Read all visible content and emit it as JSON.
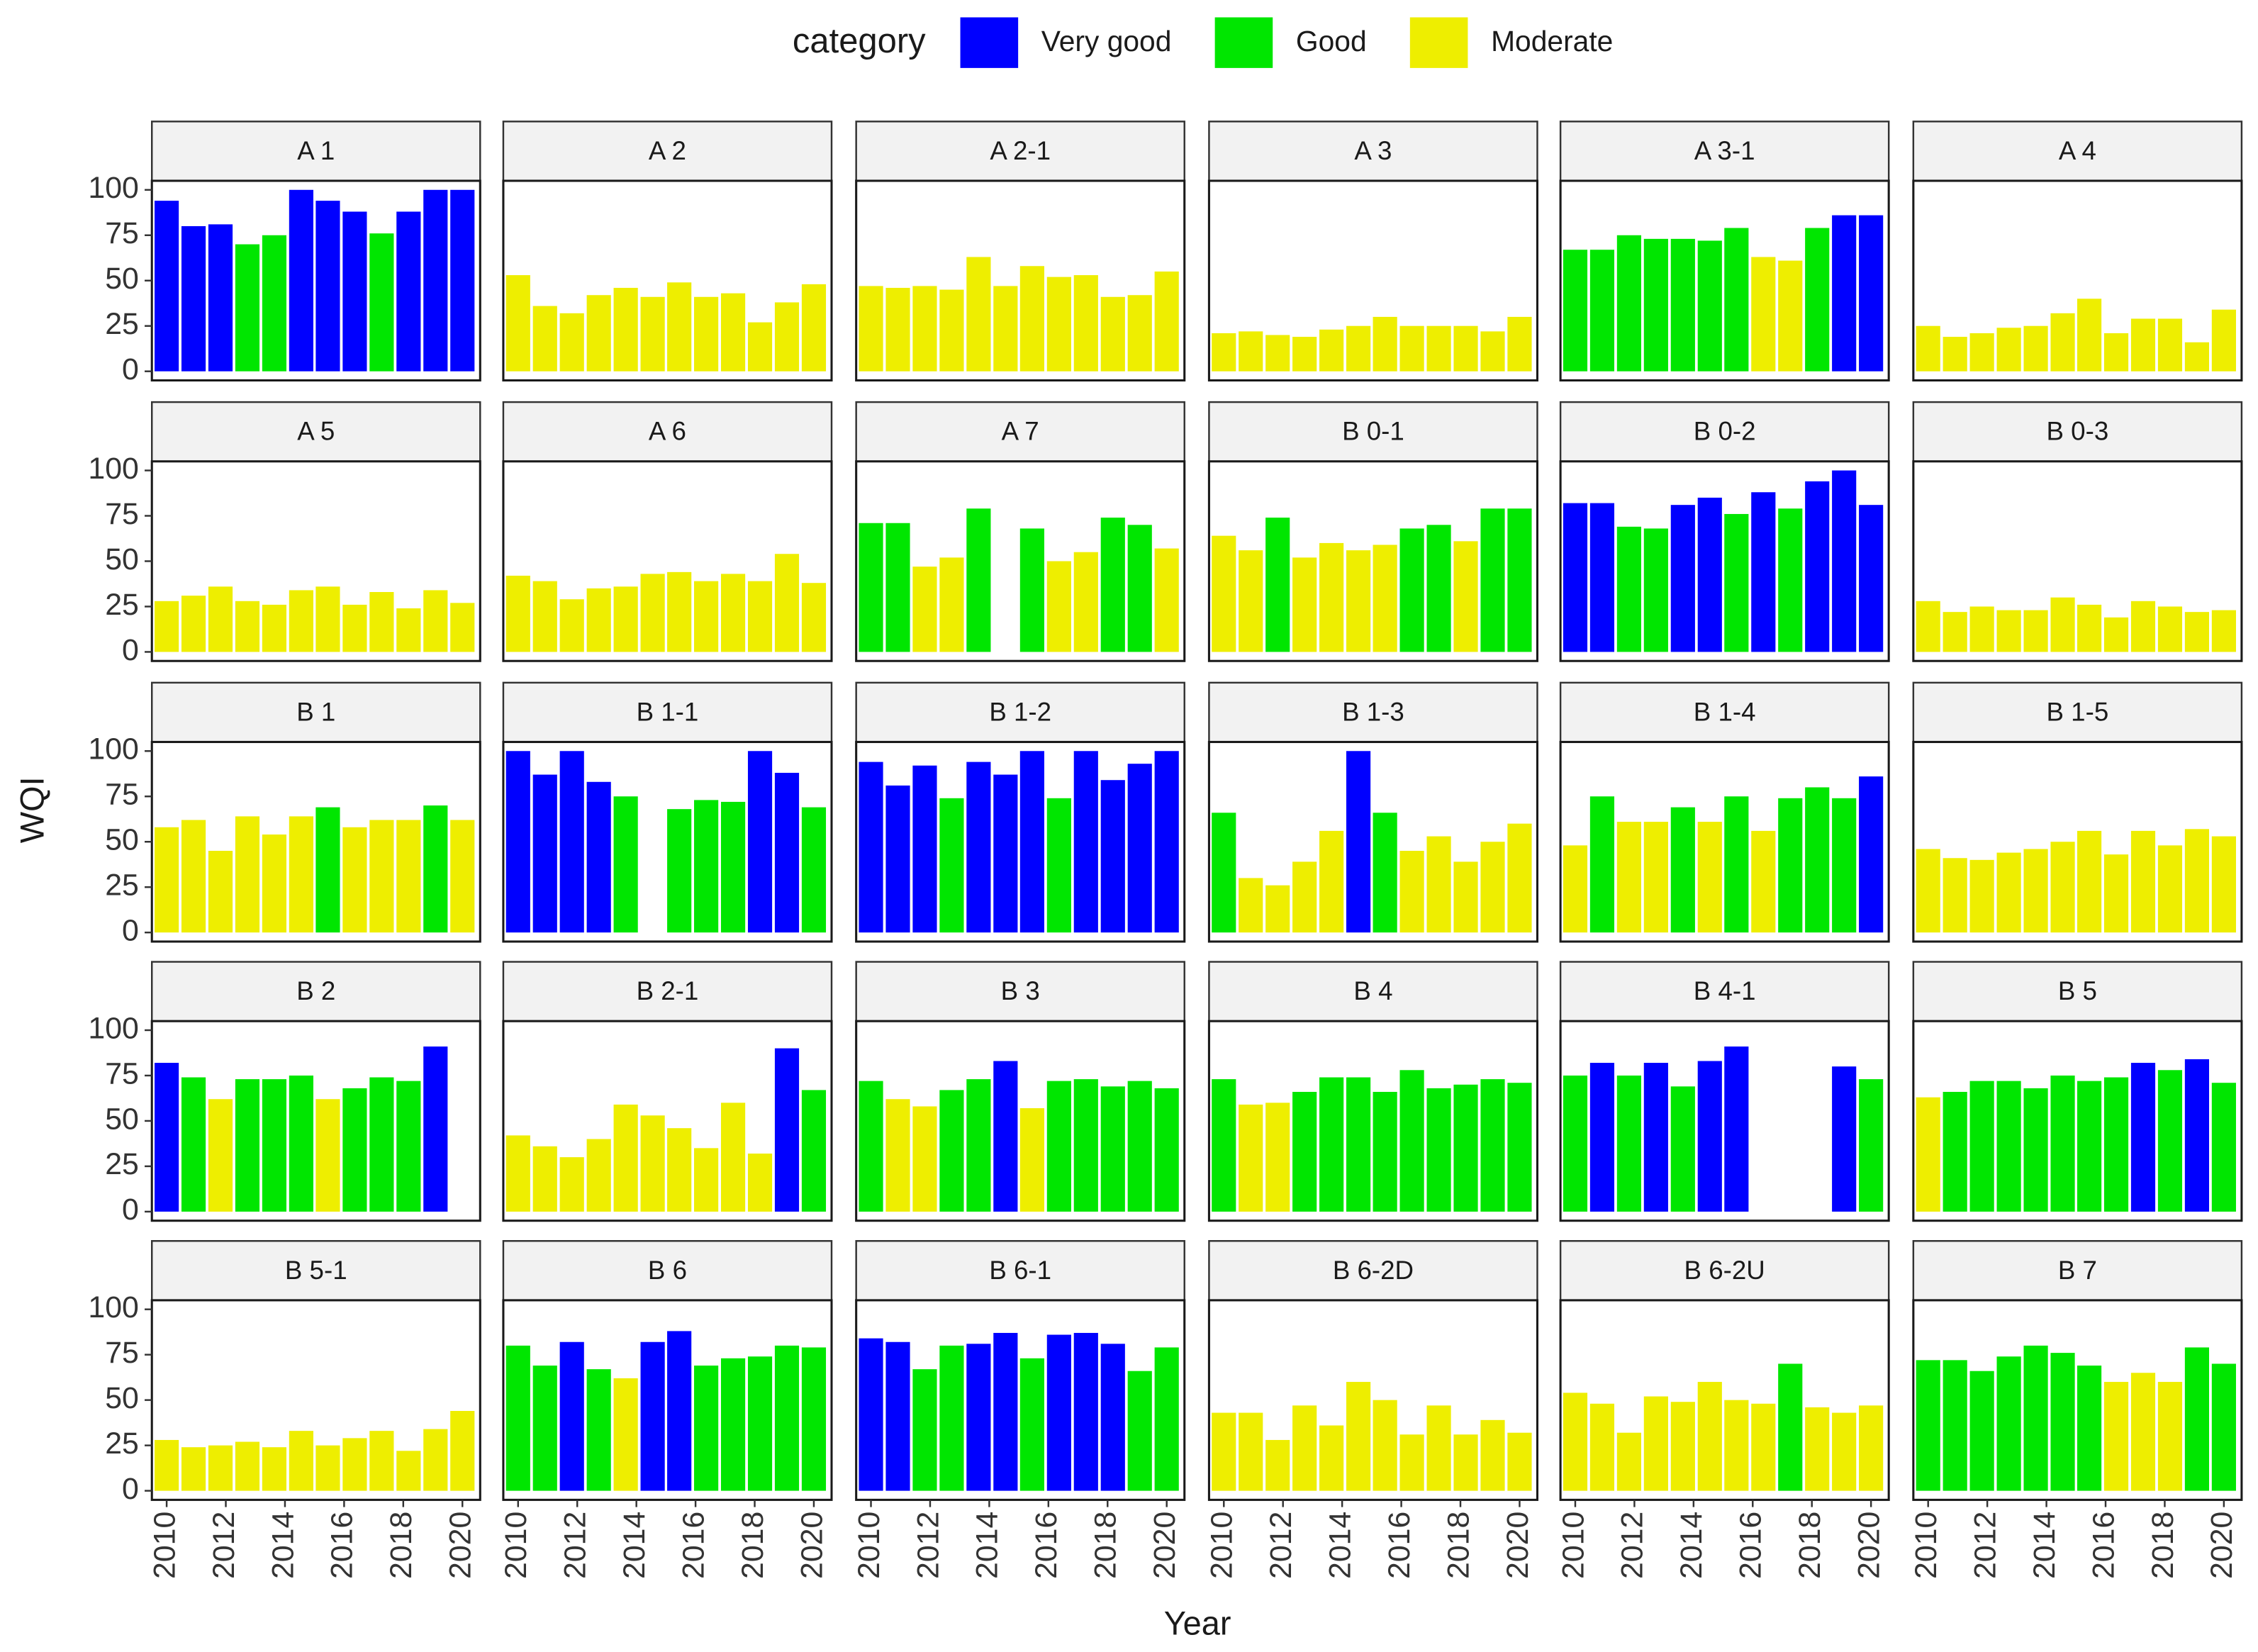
{
  "chart_data": {
    "type": "bar",
    "legend_title": "category",
    "xlabel": "Year",
    "ylabel": "WQI",
    "grid": false,
    "legend": "top",
    "series": [
      {
        "name": "Very good",
        "color": "#0000ff"
      },
      {
        "name": "Good",
        "color": "#00e600"
      },
      {
        "name": "Moderate",
        "color": "#eeee00"
      }
    ],
    "x": [
      2010,
      2010.91,
      2011.82,
      2012.73,
      2013.64,
      2014.55,
      2015.45,
      2016.36,
      2017.27,
      2018.18,
      2019.09,
      2020
    ],
    "xlim": [
      2009.5,
      2020.6
    ],
    "xticks": [
      2010,
      2012,
      2014,
      2016,
      2018,
      2020
    ],
    "ylim": [
      -5,
      105
    ],
    "yticks": [
      0,
      25,
      50,
      75,
      100
    ],
    "panels": [
      {
        "title": "A 1",
        "values": [
          94,
          80,
          81,
          70,
          75,
          100,
          94,
          88,
          76,
          88,
          100,
          100
        ],
        "category": [
          "Very good",
          "Very good",
          "Very good",
          "Good",
          "Good",
          "Very good",
          "Very good",
          "Very good",
          "Good",
          "Very good",
          "Very good",
          "Very good"
        ]
      },
      {
        "title": "A 2",
        "values": [
          53,
          36,
          32,
          42,
          46,
          41,
          49,
          41,
          43,
          27,
          38,
          48
        ],
        "category": [
          "Moderate",
          "Moderate",
          "Moderate",
          "Moderate",
          "Moderate",
          "Moderate",
          "Moderate",
          "Moderate",
          "Moderate",
          "Moderate",
          "Moderate",
          "Moderate"
        ]
      },
      {
        "title": "A 2-1",
        "values": [
          47,
          46,
          47,
          45,
          63,
          47,
          58,
          52,
          53,
          41,
          42,
          55
        ],
        "category": [
          "Moderate",
          "Moderate",
          "Moderate",
          "Moderate",
          "Moderate",
          "Moderate",
          "Moderate",
          "Moderate",
          "Moderate",
          "Moderate",
          "Moderate",
          "Moderate"
        ]
      },
      {
        "title": "A 3",
        "values": [
          21,
          22,
          20,
          19,
          23,
          25,
          30,
          25,
          25,
          25,
          22,
          30
        ],
        "category": [
          "Moderate",
          "Moderate",
          "Moderate",
          "Moderate",
          "Moderate",
          "Moderate",
          "Moderate",
          "Moderate",
          "Moderate",
          "Moderate",
          "Moderate",
          "Moderate"
        ]
      },
      {
        "title": "A 3-1",
        "values": [
          67,
          67,
          75,
          73,
          73,
          72,
          79,
          63,
          61,
          79,
          86,
          86
        ],
        "category": [
          "Good",
          "Good",
          "Good",
          "Good",
          "Good",
          "Good",
          "Good",
          "Moderate",
          "Moderate",
          "Good",
          "Very good",
          "Very good"
        ]
      },
      {
        "title": "A 4",
        "values": [
          25,
          19,
          21,
          24,
          25,
          32,
          40,
          21,
          29,
          29,
          16,
          34
        ],
        "category": [
          "Moderate",
          "Moderate",
          "Moderate",
          "Moderate",
          "Moderate",
          "Moderate",
          "Moderate",
          "Moderate",
          "Moderate",
          "Moderate",
          "Moderate",
          "Moderate"
        ]
      },
      {
        "title": "A 5",
        "values": [
          28,
          31,
          36,
          28,
          26,
          34,
          36,
          26,
          33,
          24,
          34,
          27
        ],
        "category": [
          "Moderate",
          "Moderate",
          "Moderate",
          "Moderate",
          "Moderate",
          "Moderate",
          "Moderate",
          "Moderate",
          "Moderate",
          "Moderate",
          "Moderate",
          "Moderate"
        ]
      },
      {
        "title": "A 6",
        "values": [
          42,
          39,
          29,
          35,
          36,
          43,
          44,
          39,
          43,
          39,
          54,
          38
        ],
        "category": [
          "Moderate",
          "Moderate",
          "Moderate",
          "Moderate",
          "Moderate",
          "Moderate",
          "Moderate",
          "Moderate",
          "Moderate",
          "Moderate",
          "Moderate",
          "Moderate"
        ]
      },
      {
        "title": "A 7",
        "values": [
          71,
          71,
          47,
          52,
          79,
          null,
          68,
          50,
          55,
          74,
          70,
          57
        ],
        "category": [
          "Good",
          "Good",
          "Moderate",
          "Moderate",
          "Good",
          null,
          "Good",
          "Moderate",
          "Moderate",
          "Good",
          "Good",
          "Moderate"
        ]
      },
      {
        "title": "B 0-1",
        "values": [
          64,
          56,
          74,
          52,
          60,
          56,
          59,
          68,
          70,
          61,
          79,
          79
        ],
        "category": [
          "Moderate",
          "Moderate",
          "Good",
          "Moderate",
          "Moderate",
          "Moderate",
          "Moderate",
          "Good",
          "Good",
          "Moderate",
          "Good",
          "Good"
        ]
      },
      {
        "title": "B 0-2",
        "values": [
          82,
          82,
          69,
          68,
          81,
          85,
          76,
          88,
          79,
          94,
          100,
          81
        ],
        "category": [
          "Very good",
          "Very good",
          "Good",
          "Good",
          "Very good",
          "Very good",
          "Good",
          "Very good",
          "Good",
          "Very good",
          "Very good",
          "Very good"
        ]
      },
      {
        "title": "B 0-3",
        "values": [
          28,
          22,
          25,
          23,
          23,
          30,
          26,
          19,
          28,
          25,
          22,
          23
        ],
        "category": [
          "Moderate",
          "Moderate",
          "Moderate",
          "Moderate",
          "Moderate",
          "Moderate",
          "Moderate",
          "Moderate",
          "Moderate",
          "Moderate",
          "Moderate",
          "Moderate"
        ]
      },
      {
        "title": "B 1",
        "values": [
          58,
          62,
          45,
          64,
          54,
          64,
          69,
          58,
          62,
          62,
          70,
          62
        ],
        "category": [
          "Moderate",
          "Moderate",
          "Moderate",
          "Moderate",
          "Moderate",
          "Moderate",
          "Good",
          "Moderate",
          "Moderate",
          "Moderate",
          "Good",
          "Moderate"
        ]
      },
      {
        "title": "B 1-1",
        "values": [
          100,
          87,
          100,
          83,
          75,
          null,
          68,
          73,
          72,
          100,
          88,
          69
        ],
        "category": [
          "Very good",
          "Very good",
          "Very good",
          "Very good",
          "Good",
          null,
          "Good",
          "Good",
          "Good",
          "Very good",
          "Very good",
          "Good"
        ]
      },
      {
        "title": "B 1-2",
        "values": [
          94,
          81,
          92,
          74,
          94,
          87,
          100,
          74,
          100,
          84,
          93,
          100
        ],
        "category": [
          "Very good",
          "Very good",
          "Very good",
          "Good",
          "Very good",
          "Very good",
          "Very good",
          "Good",
          "Very good",
          "Very good",
          "Very good",
          "Very good"
        ]
      },
      {
        "title": "B 1-3",
        "values": [
          66,
          30,
          26,
          39,
          56,
          100,
          66,
          45,
          53,
          39,
          50,
          60
        ],
        "category": [
          "Good",
          "Moderate",
          "Moderate",
          "Moderate",
          "Moderate",
          "Very good",
          "Good",
          "Moderate",
          "Moderate",
          "Moderate",
          "Moderate",
          "Moderate"
        ]
      },
      {
        "title": "B 1-4",
        "values": [
          48,
          75,
          61,
          61,
          69,
          61,
          75,
          56,
          74,
          80,
          74,
          86
        ],
        "category": [
          "Moderate",
          "Good",
          "Moderate",
          "Moderate",
          "Good",
          "Moderate",
          "Good",
          "Moderate",
          "Good",
          "Good",
          "Good",
          "Very good"
        ]
      },
      {
        "title": "B 1-5",
        "values": [
          46,
          41,
          40,
          44,
          46,
          50,
          56,
          43,
          56,
          48,
          57,
          53
        ],
        "category": [
          "Moderate",
          "Moderate",
          "Moderate",
          "Moderate",
          "Moderate",
          "Moderate",
          "Moderate",
          "Moderate",
          "Moderate",
          "Moderate",
          "Moderate",
          "Moderate"
        ]
      },
      {
        "title": "B 2",
        "values": [
          82,
          74,
          62,
          73,
          73,
          75,
          62,
          68,
          74,
          72,
          91,
          null
        ],
        "category": [
          "Very good",
          "Good",
          "Moderate",
          "Good",
          "Good",
          "Good",
          "Moderate",
          "Good",
          "Good",
          "Good",
          "Very good",
          null
        ]
      },
      {
        "title": "B 2-1",
        "values": [
          42,
          36,
          30,
          40,
          59,
          53,
          46,
          35,
          60,
          32,
          90,
          67
        ],
        "category": [
          "Moderate",
          "Moderate",
          "Moderate",
          "Moderate",
          "Moderate",
          "Moderate",
          "Moderate",
          "Moderate",
          "Moderate",
          "Moderate",
          "Very good",
          "Good"
        ]
      },
      {
        "title": "B 3",
        "values": [
          72,
          62,
          58,
          67,
          73,
          83,
          57,
          72,
          73,
          69,
          72,
          68
        ],
        "category": [
          "Good",
          "Moderate",
          "Moderate",
          "Good",
          "Good",
          "Very good",
          "Moderate",
          "Good",
          "Good",
          "Good",
          "Good",
          "Good"
        ]
      },
      {
        "title": "B 4",
        "values": [
          73,
          59,
          60,
          66,
          74,
          74,
          66,
          78,
          68,
          70,
          73,
          71
        ],
        "category": [
          "Good",
          "Moderate",
          "Moderate",
          "Good",
          "Good",
          "Good",
          "Good",
          "Good",
          "Good",
          "Good",
          "Good",
          "Good"
        ]
      },
      {
        "title": "B 4-1",
        "values": [
          75,
          82,
          75,
          82,
          69,
          83,
          91,
          null,
          null,
          null,
          80,
          73
        ],
        "category": [
          "Good",
          "Very good",
          "Good",
          "Very good",
          "Good",
          "Very good",
          "Very good",
          null,
          null,
          null,
          "Very good",
          "Good"
        ]
      },
      {
        "title": "B 5",
        "values": [
          63,
          66,
          72,
          72,
          68,
          75,
          72,
          74,
          82,
          78,
          84,
          71
        ],
        "category": [
          "Moderate",
          "Good",
          "Good",
          "Good",
          "Good",
          "Good",
          "Good",
          "Good",
          "Very good",
          "Good",
          "Very good",
          "Good"
        ]
      },
      {
        "title": "B 5-1",
        "values": [
          28,
          24,
          25,
          27,
          24,
          33,
          25,
          29,
          33,
          22,
          34,
          44
        ],
        "category": [
          "Moderate",
          "Moderate",
          "Moderate",
          "Moderate",
          "Moderate",
          "Moderate",
          "Moderate",
          "Moderate",
          "Moderate",
          "Moderate",
          "Moderate",
          "Moderate"
        ]
      },
      {
        "title": "B 6",
        "values": [
          80,
          69,
          82,
          67,
          62,
          82,
          88,
          69,
          73,
          74,
          80,
          79
        ],
        "category": [
          "Good",
          "Good",
          "Very good",
          "Good",
          "Moderate",
          "Very good",
          "Very good",
          "Good",
          "Good",
          "Good",
          "Good",
          "Good"
        ]
      },
      {
        "title": "B 6-1",
        "values": [
          84,
          82,
          67,
          80,
          81,
          87,
          73,
          86,
          87,
          81,
          66,
          79
        ],
        "category": [
          "Very good",
          "Very good",
          "Good",
          "Good",
          "Very good",
          "Very good",
          "Good",
          "Very good",
          "Very good",
          "Very good",
          "Good",
          "Good"
        ]
      },
      {
        "title": "B 6-2D",
        "values": [
          43,
          43,
          28,
          47,
          36,
          60,
          50,
          31,
          47,
          31,
          39,
          32
        ],
        "category": [
          "Moderate",
          "Moderate",
          "Moderate",
          "Moderate",
          "Moderate",
          "Moderate",
          "Moderate",
          "Moderate",
          "Moderate",
          "Moderate",
          "Moderate",
          "Moderate"
        ]
      },
      {
        "title": "B 6-2U",
        "values": [
          54,
          48,
          32,
          52,
          49,
          60,
          50,
          48,
          70,
          46,
          43,
          47
        ],
        "category": [
          "Moderate",
          "Moderate",
          "Moderate",
          "Moderate",
          "Moderate",
          "Moderate",
          "Moderate",
          "Moderate",
          "Good",
          "Moderate",
          "Moderate",
          "Moderate"
        ]
      },
      {
        "title": "B 7",
        "values": [
          72,
          72,
          66,
          74,
          80,
          76,
          69,
          60,
          65,
          60,
          79,
          70
        ],
        "category": [
          "Good",
          "Good",
          "Good",
          "Good",
          "Good",
          "Good",
          "Good",
          "Moderate",
          "Moderate",
          "Moderate",
          "Good",
          "Good"
        ]
      }
    ]
  }
}
